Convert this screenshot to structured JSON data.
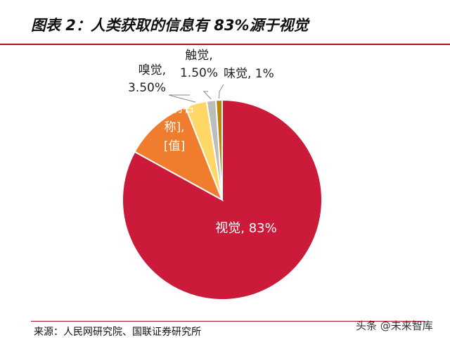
{
  "header": {
    "title": "图表 2：人类获取的信息有 83%源于视觉"
  },
  "chart_data": {
    "type": "pie",
    "categories": [
      "视觉",
      "[类别名称]",
      "嗅觉",
      "触觉",
      "味觉"
    ],
    "values": [
      83,
      11,
      3.5,
      1.5,
      1
    ],
    "labels": [
      {
        "lines": [
          "视觉, 83%"
        ]
      },
      {
        "lines": [
          "[类别名",
          "称],",
          "[值]"
        ]
      },
      {
        "lines": [
          "嗅觉,",
          "3.50%"
        ]
      },
      {
        "lines": [
          "触觉,",
          "1.50%"
        ]
      },
      {
        "lines": [
          "味觉, 1%"
        ]
      }
    ],
    "colors": [
      "#cc1a3a",
      "#ef7d2d",
      "#ffd766",
      "#bdbdbd",
      "#b8860b"
    ],
    "label_colors": [
      "#ffffff",
      "#ffffff",
      "#222222",
      "#222222",
      "#222222"
    ],
    "start_angle_deg": 0,
    "direction": "clockwise"
  },
  "footer": {
    "source": "来源：人民网研究院、国联证券研究所",
    "watermark": "头条 @未来智库"
  }
}
